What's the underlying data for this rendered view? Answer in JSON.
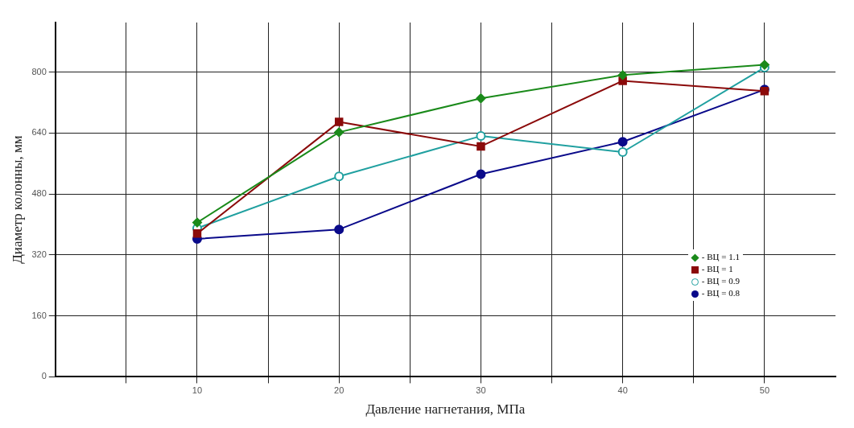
{
  "chart_data": {
    "type": "line",
    "xlabel": "Давление нагнетания, МПа",
    "ylabel": "Диаметр колонны, мм",
    "xlim": [
      0,
      55
    ],
    "ylim": [
      0,
      930
    ],
    "xticks": [
      {
        "value": 5,
        "label": null
      },
      10,
      {
        "value": 15,
        "label": null
      },
      20,
      {
        "value": 25,
        "label": null
      },
      30,
      {
        "value": 35,
        "label": null
      },
      40,
      {
        "value": 45,
        "label": null
      },
      50
    ],
    "yticks": [
      0,
      160,
      320,
      480,
      640,
      800
    ],
    "grid": true,
    "legend": "bottom right",
    "line_style": "solid",
    "x": [
      10,
      20,
      30,
      40,
      50
    ],
    "series": [
      {
        "name": "- ВЦ = 1.1",
        "color": "#1a8a1a",
        "marker": "diamond",
        "values": [
          405,
          642,
          731,
          792,
          819
        ]
      },
      {
        "name": "- ВЦ = 1",
        "color": "#8b0a0a",
        "marker": "square",
        "values": [
          376,
          669,
          605,
          777,
          750
        ]
      },
      {
        "name": "- ВЦ = 0.9",
        "color": "#20a0a0",
        "marker": "circle",
        "values": [
          390,
          526,
          632,
          590,
          812
        ]
      },
      {
        "name": "- ВЦ = 0.8",
        "color": "#0a0a8a",
        "marker": "circle",
        "values": [
          362,
          387,
          532,
          617,
          754
        ]
      }
    ]
  }
}
